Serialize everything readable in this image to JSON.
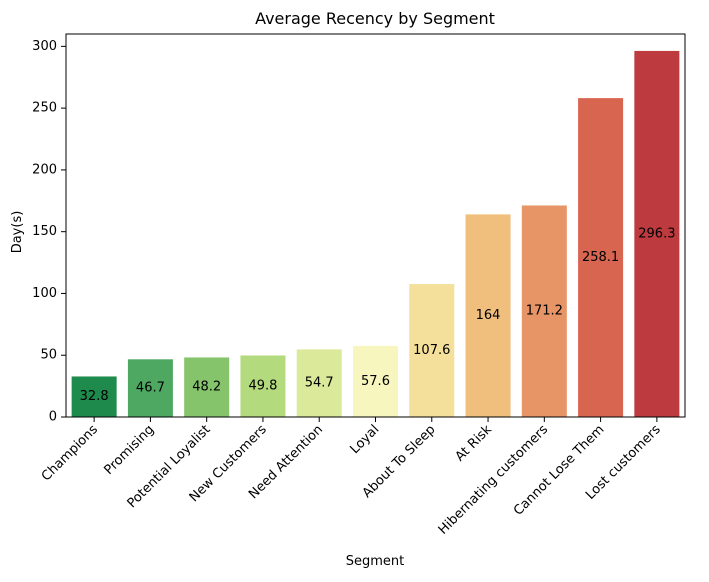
{
  "chart_data": {
    "type": "bar",
    "title": "Average Recency by Segment",
    "xlabel": "Segment",
    "ylabel": "Day(s)",
    "ylim": [
      0,
      310
    ],
    "yticks": [
      0,
      50,
      100,
      150,
      200,
      250,
      300
    ],
    "categories": [
      "Champions",
      "Promising",
      "Potential Loyalist",
      "New Customers",
      "Need Attention",
      "Loyal",
      "About To Sleep",
      "At Risk",
      "Hibernating customers",
      "Cannot Lose Them",
      "Lost customers"
    ],
    "values": [
      32.8,
      46.7,
      48.2,
      49.8,
      54.7,
      57.6,
      107.6,
      164,
      171.2,
      258.1,
      296.3
    ],
    "data_labels": [
      "32.8",
      "46.7",
      "48.2",
      "49.8",
      "54.7",
      "57.6",
      "107.6",
      "164",
      "171.2",
      "258.1",
      "296.3"
    ],
    "colors": [
      "#1e8a4b",
      "#4ea862",
      "#86c46c",
      "#b3da7c",
      "#dbe99b",
      "#f7f6be",
      "#f4e09a",
      "#f0be7d",
      "#e79566",
      "#d86550",
      "#bd3a3f"
    ],
    "grid": false,
    "legend": "none"
  }
}
